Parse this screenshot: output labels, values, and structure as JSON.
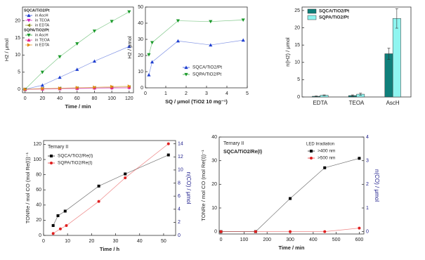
{
  "chart_data": [
    {
      "type": "line",
      "xlabel": "Time / min",
      "ylabel": "H2 / μmol",
      "xlim": [
        -3,
        125
      ],
      "ylim": [
        -1,
        24
      ],
      "xticks": [
        0,
        20,
        40,
        60,
        80,
        100,
        120
      ],
      "yticks": [
        0,
        5,
        10,
        15,
        20
      ],
      "groups": [
        {
          "name": "SQCA/TiO2/Pt",
          "series": [
            {
              "name": "in AscH",
              "color": "#1f3fd0",
              "marker": "triangle-up",
              "x": [
                0,
                20,
                40,
                60,
                80,
                120
              ],
              "values": [
                0,
                1.2,
                3.5,
                5.8,
                8.2,
                12.5
              ]
            },
            {
              "name": "in TEOA",
              "color": "#d020c0",
              "marker": "triangle-down",
              "x": [
                0,
                20,
                40,
                60,
                80,
                100,
                120
              ],
              "values": [
                0,
                0.1,
                0.2,
                0.2,
                0.3,
                0.3,
                0.4
              ]
            },
            {
              "name": "in EDTA",
              "color": "#8a8a20",
              "marker": "triangle-left",
              "x": [
                0,
                20,
                40,
                60,
                80,
                100,
                120
              ],
              "values": [
                0,
                0.2,
                0.3,
                0.4,
                0.5,
                0.6,
                0.7
              ]
            }
          ]
        },
        {
          "name": "SQPA/TiO2/Pt",
          "series": [
            {
              "name": "in AscH",
              "color": "#1a9a2a",
              "marker": "triangle-down",
              "x": [
                0,
                20,
                40,
                60,
                80,
                100,
                120
              ],
              "values": [
                0,
                5,
                9.5,
                13.3,
                17,
                19.8,
                22.6
              ]
            },
            {
              "name": "in TEOA",
              "color": "#e0208a",
              "marker": "triangle-up",
              "x": [
                0,
                20,
                40,
                60,
                80,
                100,
                120
              ],
              "values": [
                0,
                0.1,
                0.2,
                0.3,
                0.4,
                0.5,
                0.6
              ]
            },
            {
              "name": "in EDTA",
              "color": "#e08a10",
              "marker": "triangle-right",
              "x": [
                0,
                20,
                40,
                60,
                80,
                100,
                120
              ],
              "values": [
                0,
                0.2,
                0.3,
                0.5,
                0.6,
                0.8,
                0.9
              ]
            }
          ]
        }
      ]
    },
    {
      "type": "line",
      "xlabel": "SQ / μmol (TiO2 10 mg⁻¹)",
      "ylabel": "H2 / μmol",
      "xlim": [
        0,
        5
      ],
      "ylim": [
        0,
        50
      ],
      "xticks": [
        0,
        1,
        2,
        3,
        4,
        5
      ],
      "yticks": [
        0,
        10,
        20,
        30,
        40,
        50
      ],
      "series": [
        {
          "name": "SQCA/TiO2/Pt",
          "color": "#1f3fd0",
          "marker": "triangle-up",
          "x": [
            0.17,
            0.33,
            1.6,
            3.2,
            4.8
          ],
          "values": [
            8,
            16,
            29,
            26.5,
            29.5
          ]
        },
        {
          "name": "SQPA/TiO2/Pt",
          "color": "#1a9a2a",
          "marker": "triangle-down",
          "x": [
            0.17,
            0.33,
            1.6,
            3.2,
            4.8
          ],
          "values": [
            20.5,
            28,
            41.5,
            41,
            42
          ]
        }
      ]
    },
    {
      "type": "bar",
      "ylabel": "n(H2) / μmol",
      "ylim": [
        0,
        26
      ],
      "yticks": [
        0,
        5,
        10,
        15,
        20,
        25
      ],
      "categories": [
        "EDTA",
        "TEOA",
        "AscH"
      ],
      "series": [
        {
          "name": "SQCA/TiO2/Pt",
          "color": "#0f7f7a",
          "values": [
            0.2,
            0.4,
            12.5
          ],
          "errors": [
            0.1,
            0.2,
            1.6
          ]
        },
        {
          "name": "SQPA/TiO2/Pt",
          "color": "#8ff5f0",
          "values": [
            0.5,
            0.8,
            22.7
          ],
          "errors": [
            0.1,
            0.3,
            2.8
          ]
        }
      ]
    },
    {
      "type": "line",
      "title": "Ternary II",
      "xlabel": "Time / h",
      "ylabel": "TONRe / mol CO (mol Re(I))⁻¹",
      "y2label": "n(CO) / μmol",
      "xlim": [
        0,
        55
      ],
      "ylim": [
        0,
        125
      ],
      "y2lim": [
        0,
        14.5
      ],
      "xticks": [
        0,
        10,
        20,
        30,
        40,
        50
      ],
      "yticks": [
        0,
        20,
        40,
        60,
        80,
        100,
        120
      ],
      "y2ticks": [
        0,
        2,
        4,
        6,
        8,
        10,
        12,
        14
      ],
      "series": [
        {
          "name": "SQCA/TiO2/Re(I)",
          "color": "#000000",
          "marker": "square",
          "x": [
            4,
            6,
            9,
            23,
            34,
            52
          ],
          "values": [
            13,
            26,
            32,
            65,
            81,
            106
          ]
        },
        {
          "name": "SQPA/TiO2/Re(I)",
          "color": "#e02020",
          "marker": "circle",
          "axis": "y2",
          "x": [
            4,
            7,
            9.5,
            23,
            34,
            52
          ],
          "values": [
            0.3,
            1,
            1.5,
            5.2,
            8.8,
            14
          ]
        }
      ]
    },
    {
      "type": "line",
      "title": "Ternary II",
      "subtitle": "SQCA/TiO2/Re(I)",
      "legend_title": "LED Irradiation",
      "xlabel": "Time / min",
      "ylabel": "TONRe / mol CO (mol Re(I))⁻¹",
      "y2label": "n(CO) / μmol",
      "xlim": [
        -8,
        620
      ],
      "ylim": [
        -1,
        40
      ],
      "y2lim": [
        -0.1,
        4
      ],
      "xticks": [
        0,
        100,
        200,
        300,
        400,
        500,
        600
      ],
      "yticks": [
        0,
        10,
        20,
        30,
        40
      ],
      "y2ticks": [
        0,
        1,
        2,
        3,
        4
      ],
      "series": [
        {
          "name": ">400 nm",
          "color": "#000000",
          "marker": "square",
          "x": [
            0,
            150,
            300,
            450,
            600
          ],
          "values": [
            0,
            0,
            14,
            27,
            31
          ]
        },
        {
          "name": ">500 nm",
          "color": "#e02020",
          "marker": "circle",
          "x": [
            0,
            150,
            300,
            450,
            600
          ],
          "values": [
            0,
            0,
            0,
            0,
            1.5
          ]
        }
      ]
    }
  ]
}
